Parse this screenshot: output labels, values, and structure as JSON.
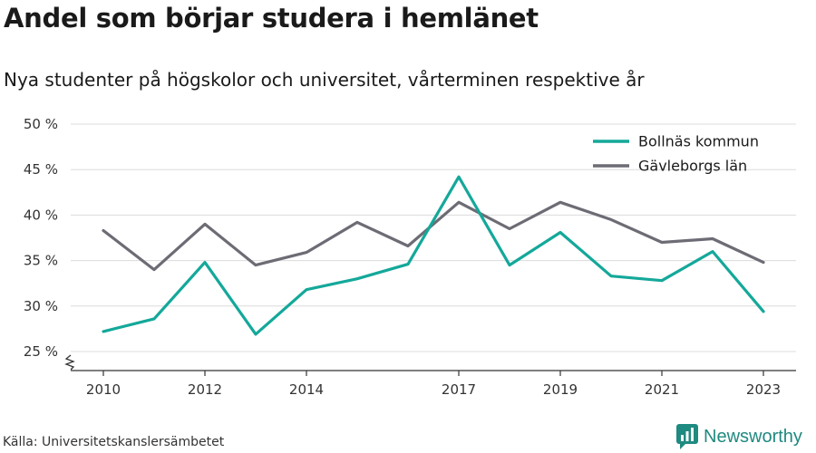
{
  "header": {
    "title": "Andel som börjar studera i hemlänet",
    "subtitle": "Nya studenter på högskolor och universitet, vårterminen respektive år"
  },
  "footer": {
    "source": "Källa: Universitetskanslersämbetet",
    "brand": "Newsworthy",
    "brand_icon": "newsworthy-logo-icon"
  },
  "chart_data": {
    "type": "line",
    "x": [
      2010,
      2011,
      2012,
      2013,
      2014,
      2015,
      2016,
      2017,
      2018,
      2019,
      2020,
      2021,
      2022,
      2023
    ],
    "x_tick_labels": [
      "2010",
      "2012",
      "2014",
      "2017",
      "2019",
      "2021",
      "2023"
    ],
    "y_tick_labels": [
      "25 %",
      "30 %",
      "35 %",
      "40 %",
      "45 %",
      "50 %"
    ],
    "ylim": [
      25,
      50
    ],
    "y_axis_break": true,
    "grid": "horizontal",
    "legend_position": "top-right",
    "series": [
      {
        "name": "Bollnäs kommun",
        "color": "#14a89a",
        "values": [
          27.2,
          28.6,
          34.8,
          26.9,
          31.8,
          33.0,
          34.6,
          44.2,
          34.5,
          38.1,
          33.3,
          32.8,
          36.0,
          29.4
        ]
      },
      {
        "name": "Gävleborgs län",
        "color": "#6d6c75",
        "values": [
          38.3,
          34.0,
          39.0,
          34.5,
          35.9,
          39.2,
          36.6,
          41.4,
          38.5,
          41.4,
          39.5,
          37.0,
          37.4,
          34.8
        ]
      }
    ]
  }
}
